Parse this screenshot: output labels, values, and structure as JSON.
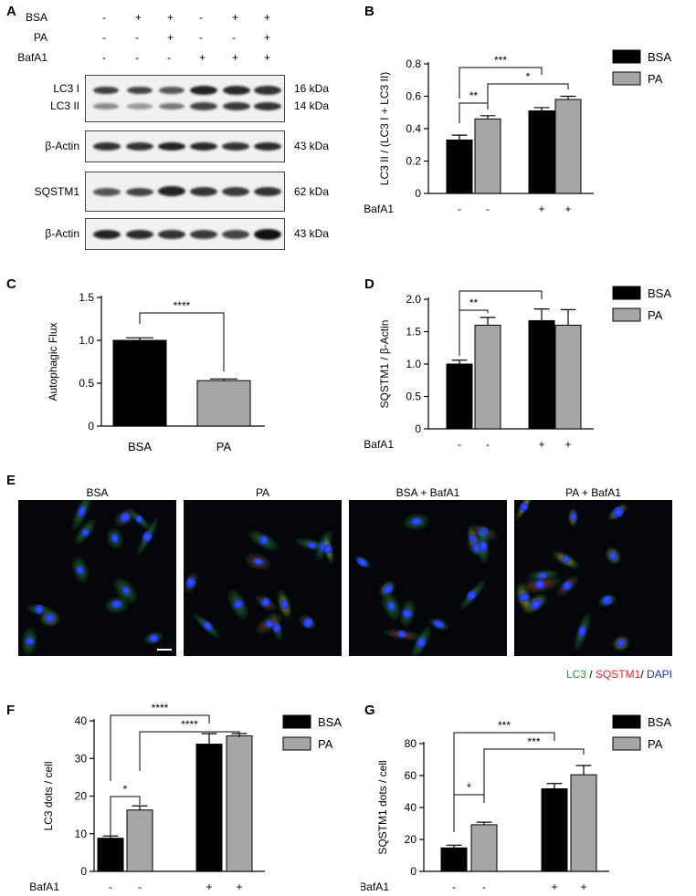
{
  "panels": {
    "A": "A",
    "B": "B",
    "C": "C",
    "D": "D",
    "E": "E",
    "F": "F",
    "G": "G"
  },
  "westernA": {
    "rows": [
      {
        "label": "BSA",
        "values": [
          "-",
          "+",
          "+",
          "-",
          "+",
          "+"
        ]
      },
      {
        "label": "PA",
        "values": [
          "-",
          "-",
          "+",
          "-",
          "-",
          "+"
        ]
      },
      {
        "label": "BafA1",
        "values": [
          "-",
          "-",
          "-",
          "+",
          "+",
          "+"
        ]
      }
    ],
    "blots": [
      {
        "labels": [
          "LC3 I",
          "LC3 II"
        ],
        "sizes": [
          "16 kDa",
          "14 kDa"
        ]
      },
      {
        "labels": [
          "β-Actin"
        ],
        "sizes": [
          "43 kDa"
        ]
      },
      {
        "labels": [
          "SQSTM1"
        ],
        "sizes": [
          "62 kDa"
        ]
      },
      {
        "labels": [
          "β-Actin"
        ],
        "sizes": [
          "43 kDa"
        ]
      }
    ]
  },
  "colors": {
    "bsa": "#000000",
    "pa": "#a6a6a6",
    "lc3": "#2a9a3a",
    "sqstm1": "#e8252a",
    "dapi": "#1c2fd8"
  },
  "legend": {
    "bsa": "BSA",
    "pa": "PA"
  },
  "images": {
    "titles": [
      "BSA",
      "PA",
      "BSA + BafA1",
      "PA + BafA1"
    ],
    "stain_lc3": "LC3",
    "stain_sep1": " / ",
    "stain_sqstm1": "SQSTM1",
    "stain_sep2": "/ ",
    "stain_dapi": "DAPI"
  },
  "chart_data": [
    {
      "panel": "B",
      "type": "bar",
      "ylabel": "LC3 II / (LC3 I + LC3 II)",
      "ylim": [
        0,
        0.8
      ],
      "yticks": [
        "0",
        "0.2",
        "0.4",
        "0.6",
        "0.8"
      ],
      "bafa1_label": "BafA1",
      "bafa1": [
        "-",
        "-",
        "+",
        "+"
      ],
      "series": [
        {
          "name": "BSA",
          "values": [
            0.33,
            0.51
          ],
          "errors": [
            0.03,
            0.02
          ]
        },
        {
          "name": "PA",
          "values": [
            0.46,
            0.58
          ],
          "errors": [
            0.02,
            0.02
          ]
        }
      ],
      "significance": [
        {
          "text": "***"
        },
        {
          "text": "*"
        },
        {
          "text": "**"
        }
      ]
    },
    {
      "panel": "C",
      "type": "bar",
      "ylabel": "Autophagic Flux",
      "ylim": [
        0,
        1.5
      ],
      "yticks": [
        "0",
        "0.5",
        "1.0",
        "1.5"
      ],
      "categories": [
        "BSA",
        "PA"
      ],
      "values": [
        1.0,
        0.53
      ],
      "errors": [
        0.03,
        0.02
      ],
      "significance": [
        {
          "text": "****"
        }
      ]
    },
    {
      "panel": "D",
      "type": "bar",
      "ylabel": "SQSTM1 / β-Actin",
      "ylim": [
        0,
        2.0
      ],
      "yticks": [
        "0",
        "0.5",
        "1.0",
        "1.5",
        "2.0"
      ],
      "bafa1_label": "BafA1",
      "bafa1": [
        "-",
        "-",
        "+",
        "+"
      ],
      "series": [
        {
          "name": "BSA",
          "values": [
            1.0,
            1.67
          ],
          "errors": [
            0.06,
            0.18
          ]
        },
        {
          "name": "PA",
          "values": [
            1.6,
            1.6
          ],
          "errors": [
            0.12,
            0.24
          ]
        }
      ],
      "significance": [
        {
          "text": "**"
        },
        {
          "text": "**"
        }
      ]
    },
    {
      "panel": "F",
      "type": "bar",
      "ylabel": "LC3 dots / cell",
      "ylim": [
        0,
        40
      ],
      "yticks": [
        "0",
        "10",
        "20",
        "30",
        "40"
      ],
      "bafa1_label": "BafA1",
      "bafa1": [
        "-",
        "-",
        "+",
        "+"
      ],
      "series": [
        {
          "name": "BSA",
          "values": [
            8.8,
            33.8
          ],
          "errors": [
            0.6,
            2.8
          ]
        },
        {
          "name": "PA",
          "values": [
            16.3,
            36.0
          ],
          "errors": [
            1.1,
            0.6
          ]
        }
      ],
      "significance": [
        {
          "text": "****"
        },
        {
          "text": "****"
        },
        {
          "text": "*"
        }
      ]
    },
    {
      "panel": "G",
      "type": "bar",
      "ylabel": "SQSTM1 dots / cell",
      "ylim": [
        0,
        80
      ],
      "yticks": [
        "0",
        "20",
        "40",
        "60",
        "80"
      ],
      "bafa1_label": "BafA1",
      "bafa1": [
        "-",
        "-",
        "+",
        "+"
      ],
      "series": [
        {
          "name": "BSA",
          "values": [
            14.7,
            51.7
          ],
          "errors": [
            1.7,
            3.3
          ]
        },
        {
          "name": "PA",
          "values": [
            29.2,
            60.5
          ],
          "errors": [
            1.6,
            5.8
          ]
        }
      ],
      "significance": [
        {
          "text": "***"
        },
        {
          "text": "***"
        },
        {
          "text": "*"
        }
      ]
    }
  ]
}
